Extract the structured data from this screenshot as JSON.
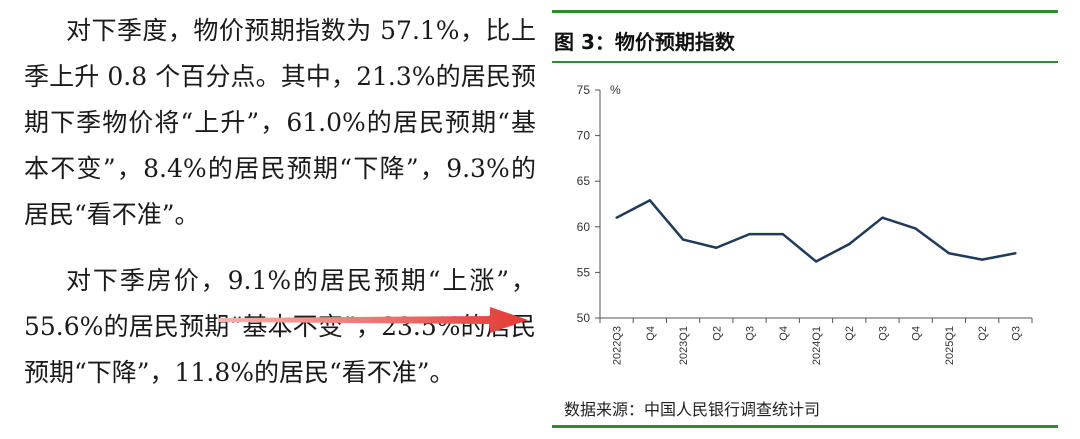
{
  "article": {
    "paragraphs": [
      "对下季度，物价预期指数为 57.1%，比上季上升 0.8 个百分点。其中，21.3%的居民预期下季物价将“上升”，61.0%的居民预期“基本不变”，8.4%的居民预期“下降”，9.3%的居民“看不准”。",
      "对下季房价，9.1%的居民预期“上涨”，55.6%的居民预期“基本不变”，23.5%的居民预期“下降”，11.8%的居民“看不准”。"
    ]
  },
  "colors": {
    "accent_green": "#2e8b2e",
    "line": "#1f3a5a",
    "arrow": "#e53935"
  },
  "figure": {
    "title": "图 3：物价预期指数",
    "source": "数据来源：中国人民银行调查统计司"
  },
  "chart_data": {
    "type": "line",
    "title": "图 3：物价预期指数",
    "ylabel": "%",
    "xlabel": "",
    "ylim": [
      50,
      75
    ],
    "yticks": [
      50,
      55,
      60,
      65,
      70,
      75
    ],
    "categories": [
      "2022Q3",
      "Q4",
      "2023Q1",
      "Q2",
      "Q3",
      "Q4",
      "2024Q1",
      "Q2",
      "Q3",
      "Q4",
      "2025Q1",
      "Q2",
      "Q3"
    ],
    "series": [
      {
        "values": [
          61.0,
          62.9,
          58.6,
          57.7,
          59.2,
          59.2,
          56.2,
          58.1,
          61.0,
          59.8,
          57.1,
          56.4,
          57.1
        ]
      }
    ],
    "grid": false,
    "legend": "none"
  }
}
